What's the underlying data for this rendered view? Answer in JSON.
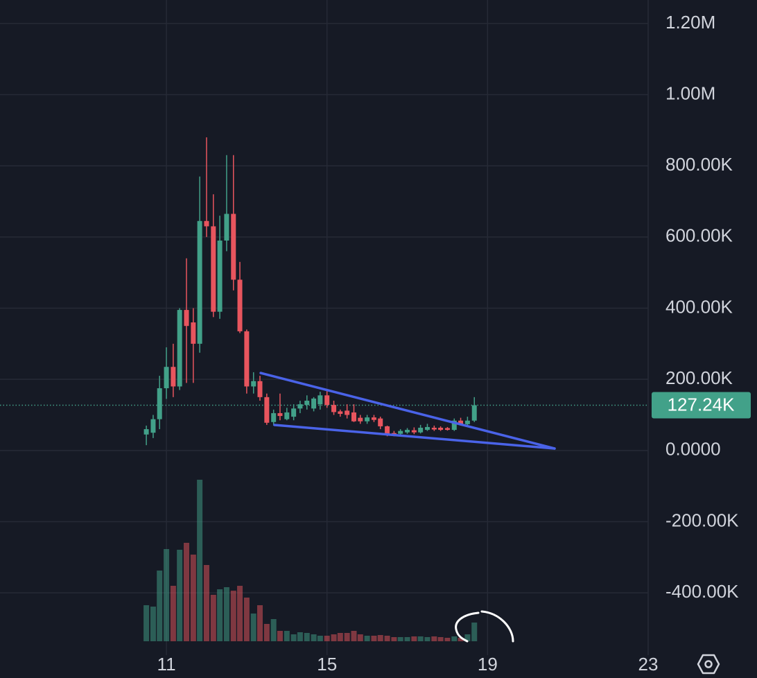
{
  "chart_data": {
    "type": "candlestick",
    "x": [
      10.5,
      10.67,
      10.83,
      11,
      11.17,
      11.33,
      11.5,
      11.67,
      11.83,
      12,
      12.17,
      12.33,
      12.5,
      12.67,
      12.83,
      13,
      13.17,
      13.33,
      13.5,
      13.67,
      13.83,
      14,
      14.17,
      14.33,
      14.5,
      14.67,
      14.83,
      15,
      15.17,
      15.33,
      15.5,
      15.67,
      15.83,
      16,
      16.17,
      16.33,
      16.5,
      16.67,
      16.83,
      17,
      17.17,
      17.33,
      17.5,
      17.67,
      17.83,
      18,
      18.17,
      18.33,
      18.5,
      18.67
    ],
    "open": [
      45,
      50,
      88,
      175,
      235,
      180,
      395,
      360,
      300,
      645,
      630,
      390,
      590,
      665,
      480,
      335,
      180,
      195,
      150,
      80,
      105,
      88,
      95,
      118,
      128,
      118,
      130,
      155,
      128,
      110,
      112,
      107,
      92,
      82,
      93,
      90,
      68,
      49,
      47,
      51,
      57,
      51,
      58,
      64,
      64,
      63,
      58,
      84,
      74,
      84
    ],
    "high": [
      70,
      100,
      210,
      290,
      300,
      400,
      540,
      400,
      770,
      880,
      720,
      660,
      830,
      830,
      530,
      340,
      220,
      210,
      160,
      115,
      160,
      120,
      130,
      140,
      155,
      150,
      165,
      170,
      140,
      115,
      130,
      130,
      100,
      100,
      100,
      95,
      70,
      55,
      60,
      63,
      65,
      72,
      75,
      70,
      68,
      66,
      90,
      92,
      95,
      150
    ],
    "low": [
      15,
      35,
      60,
      145,
      150,
      170,
      190,
      190,
      275,
      600,
      375,
      370,
      560,
      450,
      330,
      160,
      160,
      140,
      72,
      70,
      85,
      85,
      85,
      105,
      115,
      110,
      115,
      120,
      100,
      95,
      90,
      80,
      75,
      75,
      80,
      60,
      40,
      40,
      44,
      47,
      46,
      48,
      55,
      55,
      55,
      56,
      55,
      70,
      68,
      80
    ],
    "close": [
      60,
      88,
      175,
      235,
      180,
      395,
      350,
      300,
      645,
      630,
      390,
      590,
      665,
      480,
      335,
      180,
      195,
      150,
      78,
      105,
      97,
      107,
      118,
      130,
      140,
      146,
      155,
      128,
      108,
      103,
      100,
      82,
      82,
      93,
      86,
      68,
      47,
      43,
      55,
      58,
      51,
      64,
      66,
      59,
      58,
      58,
      84,
      74,
      84,
      127.24
    ],
    "volume": [
      52,
      50,
      102,
      133,
      80,
      132,
      142,
      125,
      233,
      110,
      67,
      75,
      78,
      73,
      80,
      63,
      40,
      52,
      25,
      32,
      15,
      15,
      10,
      13,
      12,
      10,
      8,
      8,
      10,
      12,
      12,
      15,
      10,
      8,
      8,
      9,
      8,
      6,
      6,
      6,
      7,
      7,
      6,
      7,
      6,
      5,
      7,
      5,
      10,
      27
    ],
    "volume_ylim": [
      0,
      240
    ],
    "up_color": "#42a189",
    "down_color": "#e8555e",
    "xlim": [
      6.855,
      23
    ],
    "xticks": [
      11,
      15,
      19,
      23
    ],
    "ylim": [
      -575,
      1266
    ],
    "yticks": [
      {
        "value": 1200,
        "label": "1.20M"
      },
      {
        "value": 1000,
        "label": "1.00M"
      },
      {
        "value": 800,
        "label": "800.00K"
      },
      {
        "value": 600,
        "label": "600.00K"
      },
      {
        "value": 400,
        "label": "400.00K"
      },
      {
        "value": 200,
        "label": "200.00K"
      },
      {
        "value": 0,
        "label": "0.0000"
      },
      {
        "value": -200,
        "label": "-200.00K"
      },
      {
        "value": -400,
        "label": "-400.00K"
      }
    ],
    "last_price": {
      "value": 127.24,
      "label": "127.24K"
    },
    "grid": true
  }
}
